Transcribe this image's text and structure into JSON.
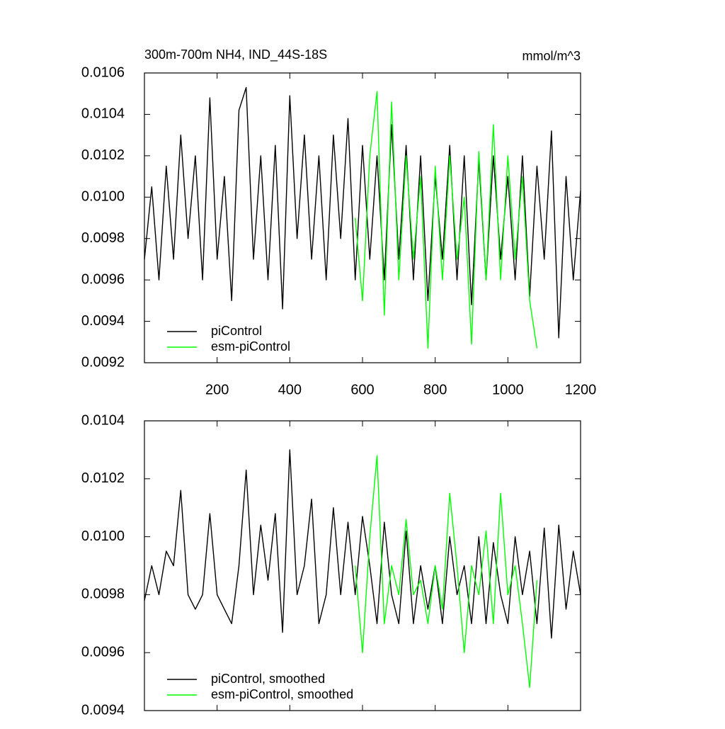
{
  "chart_data": [
    {
      "type": "line",
      "title": "300m-700m NH4, IND_44S-18S",
      "units": "mmol/m^3",
      "x": [
        0,
        20,
        40,
        60,
        80,
        100,
        120,
        140,
        160,
        180,
        200,
        220,
        240,
        260,
        280,
        300,
        320,
        340,
        360,
        380,
        400,
        420,
        440,
        460,
        480,
        500,
        520,
        540,
        560,
        580,
        600,
        620,
        640,
        660,
        680,
        700,
        720,
        740,
        760,
        780,
        800,
        820,
        840,
        860,
        880,
        900,
        920,
        940,
        960,
        980,
        1000,
        1020,
        1040,
        1060,
        1080,
        1100,
        1120,
        1140,
        1160,
        1180,
        1200
      ],
      "series": [
        {
          "name": "piControl",
          "color": "#000000",
          "values": [
            0.0097,
            0.01005,
            0.0096,
            0.01015,
            0.0097,
            0.0103,
            0.0098,
            0.0102,
            0.0096,
            0.01048,
            0.0097,
            0.0101,
            0.0095,
            0.01042,
            0.01053,
            0.0097,
            0.0102,
            0.0096,
            0.01025,
            0.00946,
            0.01049,
            0.0098,
            0.0103,
            0.0097,
            0.0102,
            0.0096,
            0.0103,
            0.0098,
            0.01038,
            0.0096,
            0.01025,
            0.0097,
            0.0102,
            0.0096,
            0.01035,
            0.0097,
            0.01025,
            0.0096,
            0.0102,
            0.0095,
            0.0101,
            0.0097,
            0.01025,
            0.0096,
            0.0102,
            0.00948,
            0.01018,
            0.0096,
            0.0102,
            0.0097,
            0.0101,
            0.0096,
            0.0102,
            0.00952,
            0.01015,
            0.0097,
            0.01032,
            0.00932,
            0.0101,
            0.0096,
            0.01003
          ]
        },
        {
          "name": "esm-piControl",
          "color": "#00ff00",
          "values": [
            null,
            null,
            null,
            null,
            null,
            null,
            null,
            null,
            null,
            null,
            null,
            null,
            null,
            null,
            null,
            null,
            null,
            null,
            null,
            null,
            null,
            null,
            null,
            null,
            null,
            null,
            null,
            null,
            null,
            0.0099,
            0.0095,
            0.0102,
            0.01051,
            0.00943,
            0.01046,
            0.0096,
            0.0102,
            0.0097,
            0.0101,
            0.00927,
            0.01015,
            0.0096,
            0.0102,
            0.0097,
            0.01,
            0.00929,
            0.01022,
            0.0096,
            0.01035,
            0.0096,
            0.0102,
            0.0097,
            0.0101,
            0.0095,
            0.00927,
            null,
            null,
            null,
            null,
            null,
            null
          ]
        }
      ],
      "xlim": [
        0,
        1200
      ],
      "xticks": [
        200,
        400,
        600,
        800,
        1000,
        1200
      ],
      "xtick_labels": true,
      "ylim": [
        0.0092,
        0.0106
      ],
      "yticks": [
        0.0092,
        0.0094,
        0.0096,
        0.0098,
        {
          "value": 0.01,
          "label": "0.0100"
        },
        0.0102,
        0.0104,
        0.0106
      ],
      "legend": "lower left"
    },
    {
      "type": "line",
      "x": [
        0,
        20,
        40,
        60,
        80,
        100,
        120,
        140,
        160,
        180,
        200,
        220,
        240,
        260,
        280,
        300,
        320,
        340,
        360,
        380,
        400,
        420,
        440,
        460,
        480,
        500,
        520,
        540,
        560,
        580,
        600,
        620,
        640,
        660,
        680,
        700,
        720,
        740,
        760,
        780,
        800,
        820,
        840,
        860,
        880,
        900,
        920,
        940,
        960,
        980,
        1000,
        1020,
        1040,
        1060,
        1080,
        1100,
        1120,
        1140,
        1160,
        1180,
        1200
      ],
      "series": [
        {
          "name": "piControl, smoothed",
          "color": "#000000",
          "values": [
            0.00978,
            0.0099,
            0.0098,
            0.00995,
            0.0099,
            0.01016,
            0.0098,
            0.00975,
            0.0098,
            0.01008,
            0.0098,
            0.00975,
            0.0097,
            0.0099,
            0.01023,
            0.0098,
            0.01004,
            0.00985,
            0.01008,
            0.00967,
            0.0103,
            0.0098,
            0.0099,
            0.01013,
            0.0097,
            0.0098,
            0.0101,
            0.0098,
            0.01005,
            0.0098,
            0.01007,
            0.0099,
            0.0097,
            0.01005,
            0.0098,
            0.0097,
            0.01002,
            0.0097,
            0.0099,
            0.00975,
            0.0099,
            0.0097,
            0.01,
            0.0098,
            0.0099,
            0.0097,
            0.01,
            0.0097,
            0.00998,
            0.0098,
            0.0097,
            0.01,
            0.0098,
            0.00995,
            0.0097,
            0.01003,
            0.00965,
            0.01004,
            0.00975,
            0.00995,
            0.0098
          ]
        },
        {
          "name": "esm-piControl, smoothed",
          "color": "#00ff00",
          "values": [
            null,
            null,
            null,
            null,
            null,
            null,
            null,
            null,
            null,
            null,
            null,
            null,
            null,
            null,
            null,
            null,
            null,
            null,
            null,
            null,
            null,
            null,
            null,
            null,
            null,
            null,
            null,
            null,
            null,
            0.0099,
            0.0096,
            0.01,
            0.01028,
            0.0097,
            0.0099,
            0.0098,
            0.01006,
            0.0098,
            0.00985,
            0.0097,
            0.0099,
            0.00975,
            0.01015,
            0.0099,
            0.0096,
            0.0099,
            0.0098,
            0.01002,
            0.0097,
            0.01015,
            0.0098,
            0.0099,
            0.0097,
            0.00948,
            0.00985,
            null,
            null,
            null,
            null,
            null,
            null
          ]
        }
      ],
      "xlim": [
        0,
        1200
      ],
      "xticks": [
        200,
        400,
        600,
        800,
        1000,
        1200
      ],
      "xtick_labels": false,
      "ylim": [
        0.0094,
        0.0104
      ],
      "yticks": [
        0.0094,
        0.0096,
        0.0098,
        {
          "value": 0.01,
          "label": "0.0100"
        },
        0.0102,
        0.0104
      ],
      "legend": "lower left"
    }
  ]
}
